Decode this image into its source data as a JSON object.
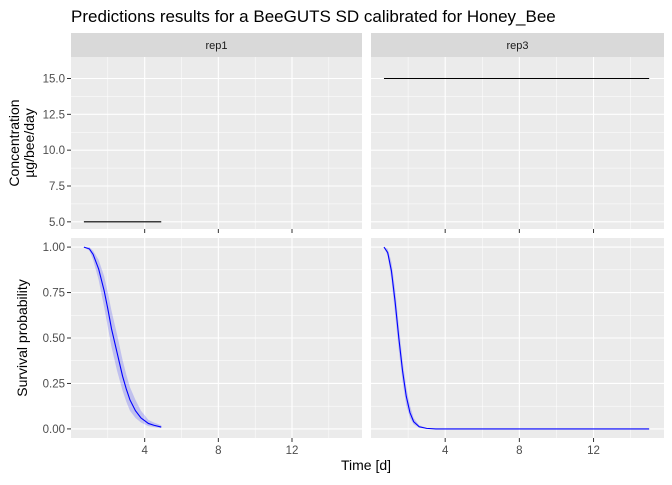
{
  "chart_data": {
    "type": "line",
    "title": "Predictions results for a BeeGUTS SD calibrated for Honey_Bee",
    "xlabel": "Time [d]",
    "xlim": [
      0,
      15.8
    ],
    "x_ticks": [
      4,
      8,
      12
    ],
    "x_tick_labels": [
      "4",
      "8",
      "12"
    ],
    "facets": [
      "rep1",
      "rep3"
    ],
    "rows": [
      {
        "id": "concentration",
        "ylabel": [
          "Concentration",
          "µg/bee/day"
        ],
        "ylim": [
          4.5,
          16.5
        ],
        "y_ticks": [
          5.0,
          7.5,
          10.0,
          12.5,
          15.0
        ],
        "y_tick_labels": [
          "5.0",
          "7.5",
          "10.0",
          "12.5",
          "15.0"
        ]
      },
      {
        "id": "survival",
        "ylabel": [
          "Survival probability"
        ],
        "ylim": [
          -0.05,
          1.05
        ],
        "y_ticks": [
          0,
          0.25,
          0.5,
          0.75,
          1.0
        ],
        "y_tick_labels": [
          "0.00",
          "0.25",
          "0.50",
          "0.75",
          "1.00"
        ]
      }
    ],
    "concentration": {
      "rep1": {
        "x": [
          0.7,
          4.9
        ],
        "y": [
          5,
          5
        ]
      },
      "rep3": {
        "x": [
          0.7,
          15.0
        ],
        "y": [
          15,
          15
        ]
      }
    },
    "survival": {
      "rep1": {
        "x": [
          0.7,
          1.0,
          1.2,
          1.5,
          1.8,
          2.0,
          2.2,
          2.5,
          2.8,
          3.0,
          3.2,
          3.5,
          3.8,
          4.0,
          4.2,
          4.5,
          4.9
        ],
        "y": [
          1.0,
          0.99,
          0.96,
          0.88,
          0.76,
          0.66,
          0.55,
          0.42,
          0.29,
          0.22,
          0.16,
          0.1,
          0.06,
          0.045,
          0.03,
          0.02,
          0.01
        ],
        "lower": [
          1.0,
          0.98,
          0.93,
          0.82,
          0.67,
          0.56,
          0.45,
          0.32,
          0.21,
          0.15,
          0.1,
          0.06,
          0.035,
          0.025,
          0.015,
          0.01,
          0.005
        ],
        "upper": [
          1.0,
          1.0,
          0.98,
          0.93,
          0.84,
          0.75,
          0.65,
          0.52,
          0.38,
          0.3,
          0.23,
          0.16,
          0.1,
          0.075,
          0.05,
          0.035,
          0.02
        ]
      },
      "rep3": {
        "x": [
          0.7,
          0.9,
          1.1,
          1.3,
          1.5,
          1.7,
          1.9,
          2.1,
          2.3,
          2.6,
          3.0,
          3.5,
          4.0,
          6.0,
          10.0,
          15.0
        ],
        "y": [
          1.0,
          0.97,
          0.87,
          0.7,
          0.5,
          0.32,
          0.18,
          0.09,
          0.04,
          0.012,
          0.003,
          0.0,
          0.0,
          0.0,
          0.0,
          0.0
        ],
        "lower": [
          1.0,
          0.95,
          0.82,
          0.63,
          0.43,
          0.26,
          0.13,
          0.06,
          0.025,
          0.006,
          0.001,
          0.0,
          0.0,
          0.0,
          0.0,
          0.0
        ],
        "upper": [
          1.0,
          0.99,
          0.92,
          0.77,
          0.57,
          0.38,
          0.23,
          0.13,
          0.06,
          0.02,
          0.006,
          0.001,
          0.0,
          0.0,
          0.0,
          0.0
        ]
      }
    },
    "colors": {
      "panel_background": "#EBEBEB",
      "strip_background": "#D9D9D9",
      "grid": "#FFFFFF",
      "concentration_line": "#000000",
      "survival_line": "#0000FF"
    },
    "grid": true,
    "legend": "none"
  }
}
